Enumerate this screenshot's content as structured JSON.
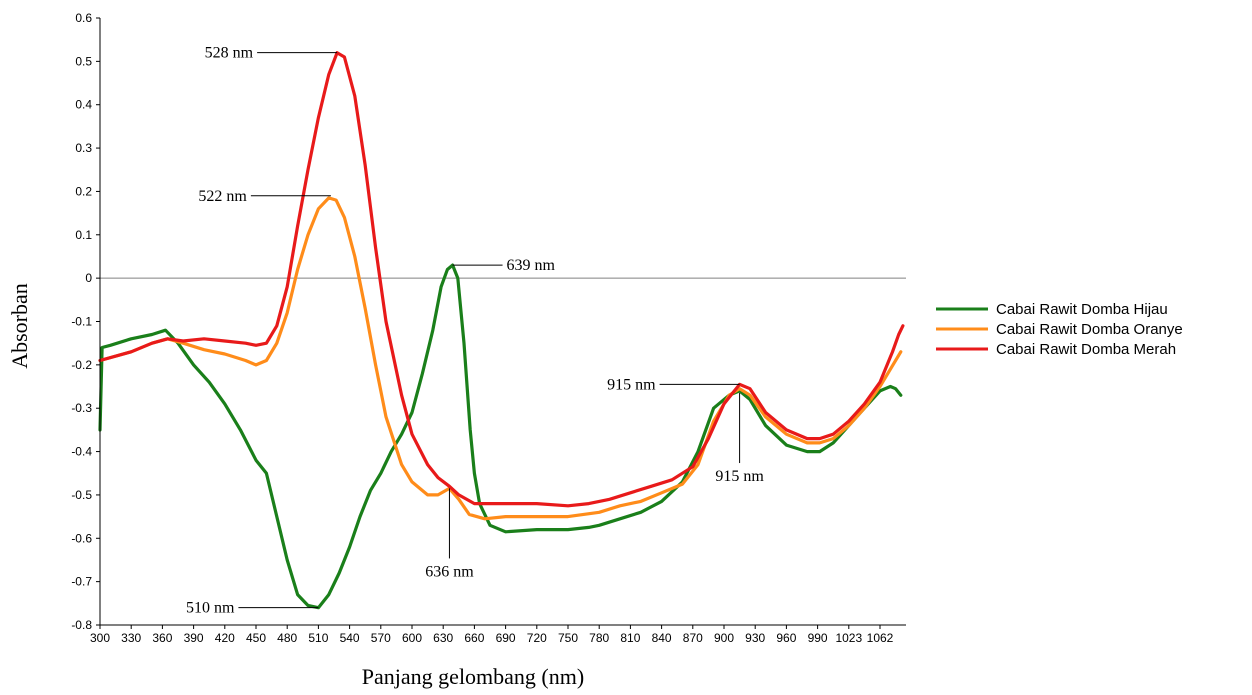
{
  "chart_data": {
    "type": "line",
    "xlabel": "Panjang gelombang (nm)",
    "ylabel": "Absorban",
    "xlim": [
      300,
      1075
    ],
    "ylim": [
      -0.8,
      0.6
    ],
    "y_ticks": [
      0.6,
      0.5,
      0.4,
      0.3,
      0.2,
      0.1,
      0,
      -0.1,
      -0.2,
      -0.3,
      -0.4,
      -0.5,
      -0.6,
      -0.7,
      -0.8
    ],
    "x_ticks": [
      300,
      330,
      360,
      390,
      420,
      450,
      480,
      510,
      540,
      570,
      600,
      630,
      660,
      690,
      720,
      750,
      780,
      810,
      840,
      870,
      900,
      930,
      960,
      990,
      1023,
      1062
    ],
    "legend_position": "right",
    "zero_line": true,
    "series": [
      {
        "name": "Cabai Rawit Domba Hijau",
        "color": "#1a7f1a",
        "x": [
          300,
          302,
          310,
          330,
          350,
          363,
          375,
          390,
          405,
          420,
          435,
          450,
          460,
          470,
          480,
          490,
          500,
          510,
          520,
          530,
          540,
          550,
          560,
          570,
          580,
          590,
          600,
          610,
          620,
          628,
          634,
          639,
          644,
          650,
          656,
          660,
          665,
          675,
          690,
          720,
          750,
          770,
          780,
          800,
          820,
          840,
          860,
          875,
          890,
          905,
          915,
          925,
          940,
          960,
          980,
          992,
          1005,
          1020,
          1035,
          1050,
          1060,
          1065,
          1070
        ],
        "y": [
          -0.35,
          -0.16,
          -0.155,
          -0.14,
          -0.13,
          -0.12,
          -0.15,
          -0.2,
          -0.24,
          -0.29,
          -0.35,
          -0.42,
          -0.45,
          -0.55,
          -0.65,
          -0.73,
          -0.755,
          -0.76,
          -0.73,
          -0.68,
          -0.62,
          -0.55,
          -0.49,
          -0.45,
          -0.4,
          -0.36,
          -0.31,
          -0.22,
          -0.12,
          -0.02,
          0.02,
          0.03,
          0.0,
          -0.15,
          -0.35,
          -0.45,
          -0.52,
          -0.57,
          -0.585,
          -0.58,
          -0.58,
          -0.575,
          -0.57,
          -0.555,
          -0.54,
          -0.515,
          -0.47,
          -0.4,
          -0.3,
          -0.27,
          -0.26,
          -0.28,
          -0.34,
          -0.385,
          -0.4,
          -0.4,
          -0.38,
          -0.34,
          -0.3,
          -0.26,
          -0.25,
          -0.255,
          -0.27
        ]
      },
      {
        "name": "Cabai Rawit Domba Oranye",
        "color": "#ff8c1a",
        "x": [
          300,
          330,
          350,
          365,
          380,
          400,
          420,
          440,
          450,
          460,
          470,
          480,
          490,
          500,
          510,
          520,
          527,
          535,
          545,
          555,
          565,
          575,
          590,
          600,
          615,
          625,
          636,
          645,
          655,
          670,
          690,
          720,
          750,
          780,
          800,
          820,
          840,
          860,
          875,
          890,
          905,
          915,
          925,
          940,
          960,
          980,
          992,
          1005,
          1020,
          1035,
          1050,
          1060,
          1070
        ],
        "y": [
          -0.19,
          -0.17,
          -0.15,
          -0.14,
          -0.15,
          -0.165,
          -0.175,
          -0.19,
          -0.2,
          -0.19,
          -0.15,
          -0.08,
          0.02,
          0.1,
          0.16,
          0.185,
          0.18,
          0.14,
          0.05,
          -0.07,
          -0.2,
          -0.32,
          -0.43,
          -0.47,
          -0.5,
          -0.5,
          -0.485,
          -0.51,
          -0.545,
          -0.555,
          -0.55,
          -0.55,
          -0.55,
          -0.54,
          -0.525,
          -0.515,
          -0.495,
          -0.475,
          -0.43,
          -0.33,
          -0.27,
          -0.255,
          -0.27,
          -0.32,
          -0.36,
          -0.38,
          -0.38,
          -0.37,
          -0.34,
          -0.3,
          -0.25,
          -0.21,
          -0.17
        ]
      },
      {
        "name": "Cabai Rawit Domba Merah",
        "color": "#e81a1a",
        "x": [
          300,
          330,
          350,
          365,
          380,
          400,
          420,
          440,
          450,
          460,
          470,
          480,
          490,
          500,
          510,
          520,
          528,
          535,
          545,
          555,
          565,
          575,
          590,
          600,
          615,
          625,
          636,
          645,
          660,
          690,
          720,
          750,
          770,
          790,
          810,
          830,
          850,
          870,
          885,
          900,
          915,
          925,
          940,
          960,
          980,
          992,
          1005,
          1020,
          1035,
          1050,
          1062,
          1068,
          1072
        ],
        "y": [
          -0.19,
          -0.17,
          -0.15,
          -0.14,
          -0.145,
          -0.14,
          -0.145,
          -0.15,
          -0.155,
          -0.15,
          -0.11,
          -0.02,
          0.12,
          0.25,
          0.37,
          0.47,
          0.52,
          0.51,
          0.42,
          0.26,
          0.07,
          -0.1,
          -0.27,
          -0.36,
          -0.43,
          -0.46,
          -0.48,
          -0.5,
          -0.52,
          -0.52,
          -0.52,
          -0.525,
          -0.52,
          -0.51,
          -0.495,
          -0.48,
          -0.465,
          -0.435,
          -0.37,
          -0.29,
          -0.245,
          -0.255,
          -0.31,
          -0.35,
          -0.37,
          -0.37,
          -0.36,
          -0.33,
          -0.29,
          -0.24,
          -0.17,
          -0.13,
          -0.11
        ]
      }
    ],
    "annotations": [
      {
        "text": "528 nm",
        "x": 528,
        "y": 0.52,
        "side": "left"
      },
      {
        "text": "522 nm",
        "x": 522,
        "y": 0.19,
        "side": "left"
      },
      {
        "text": "639 nm",
        "x": 639,
        "y": 0.03,
        "side": "right"
      },
      {
        "text": "510 nm",
        "x": 510,
        "y": -0.76,
        "side": "left"
      },
      {
        "text": "636 nm",
        "x": 636,
        "y": -0.485,
        "side": "below"
      },
      {
        "text": "915 nm",
        "x": 915,
        "y": -0.245,
        "side": "left"
      },
      {
        "text": "915 nm",
        "x": 915,
        "y": -0.265,
        "side": "below"
      }
    ]
  }
}
